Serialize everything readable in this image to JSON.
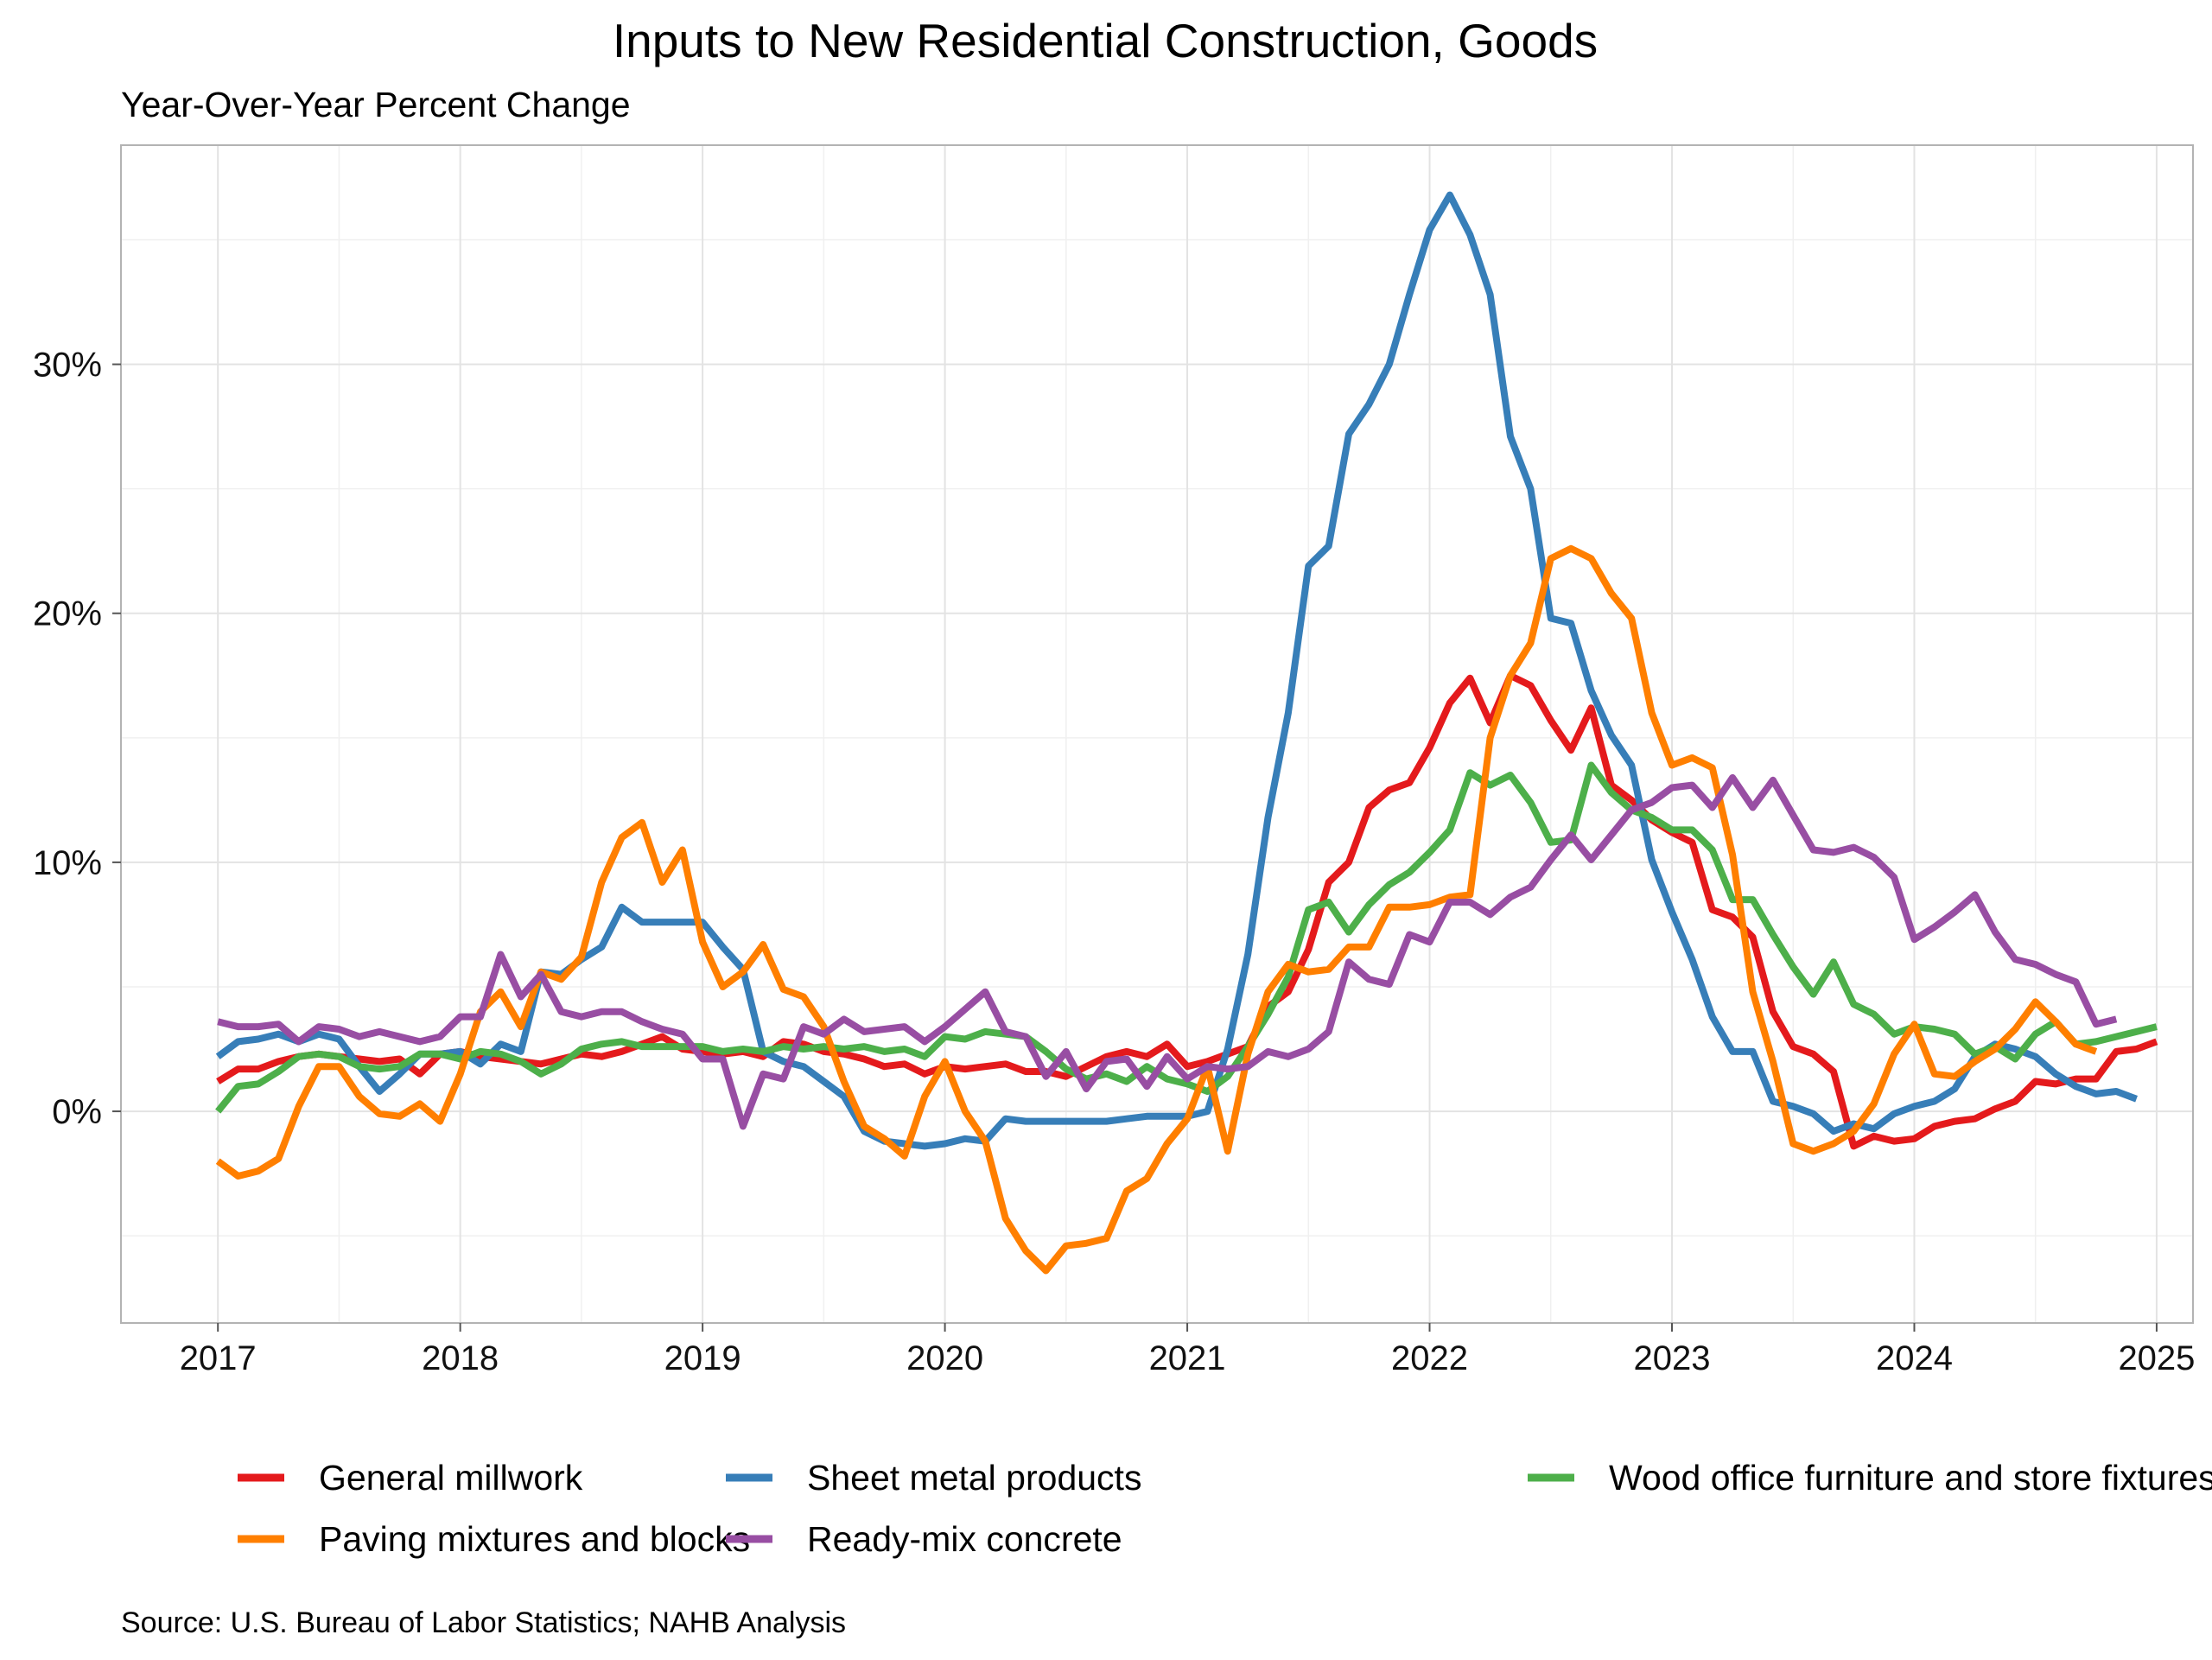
{
  "chart_data": {
    "type": "line",
    "title": "Inputs to New Residential Construction, Goods",
    "subtitle": "Year-Over-Year Percent Change",
    "caption": "Source: U.S. Bureau of Labor Statistics; NAHB Analysis",
    "xlabel": "",
    "ylabel": "",
    "x_start": "2017-01",
    "xlim": [
      2016.6,
      2025.15
    ],
    "ylim": [
      -8.5,
      38.8
    ],
    "x_ticks": [
      {
        "value": 2017,
        "label": "2017"
      },
      {
        "value": 2018,
        "label": "2018"
      },
      {
        "value": 2019,
        "label": "2019"
      },
      {
        "value": 2020,
        "label": "2020"
      },
      {
        "value": 2021,
        "label": "2021"
      },
      {
        "value": 2022,
        "label": "2022"
      },
      {
        "value": 2023,
        "label": "2023"
      },
      {
        "value": 2024,
        "label": "2024"
      },
      {
        "value": 2025,
        "label": "2025"
      }
    ],
    "y_ticks": [
      {
        "value": 0,
        "label": "0%"
      },
      {
        "value": 10,
        "label": "10%"
      },
      {
        "value": 20,
        "label": "20%"
      },
      {
        "value": 30,
        "label": "30%"
      }
    ],
    "y_minor_ticks": [
      -5,
      5,
      15,
      25,
      35
    ],
    "grid": true,
    "legend_position": "bottom",
    "series": [
      {
        "name": "General millwork",
        "color": "#e41a1c",
        "values": [
          1.2,
          1.7,
          1.7,
          2.0,
          2.2,
          2.3,
          2.2,
          2.1,
          2.0,
          2.1,
          1.5,
          2.3,
          2.4,
          2.2,
          2.1,
          2.0,
          1.9,
          2.1,
          2.3,
          2.2,
          2.4,
          2.7,
          3.0,
          2.5,
          2.4,
          2.3,
          2.4,
          2.2,
          2.8,
          2.7,
          2.4,
          2.3,
          2.1,
          1.8,
          1.9,
          1.5,
          1.8,
          1.7,
          1.8,
          1.9,
          1.6,
          1.6,
          1.4,
          1.8,
          2.2,
          2.4,
          2.2,
          2.7,
          1.8,
          2.0,
          2.3,
          2.6,
          4.2,
          4.8,
          6.5,
          9.2,
          10.0,
          12.2,
          12.9,
          13.2,
          14.6,
          16.4,
          17.4,
          15.6,
          17.5,
          17.1,
          15.7,
          14.5,
          16.2,
          13.1,
          12.5,
          11.7,
          11.2,
          10.8,
          8.1,
          7.8,
          7.0,
          4.0,
          2.6,
          2.3,
          1.6,
          -1.4,
          -1.0,
          -1.2,
          -1.1,
          -0.6,
          -0.4,
          -0.3,
          0.1,
          0.4,
          1.2,
          1.1,
          1.3,
          1.3,
          2.4,
          2.5,
          2.8
        ]
      },
      {
        "name": "Sheet metal products",
        "color": "#377eb8",
        "values": [
          2.2,
          2.8,
          2.9,
          3.1,
          2.8,
          3.1,
          2.9,
          1.8,
          0.8,
          1.5,
          2.3,
          2.3,
          2.4,
          1.9,
          2.7,
          2.4,
          5.6,
          5.5,
          6.1,
          6.6,
          8.2,
          7.6,
          7.6,
          7.6,
          7.6,
          6.6,
          5.7,
          2.4,
          2.0,
          1.8,
          1.2,
          0.6,
          -0.8,
          -1.2,
          -1.3,
          -1.4,
          -1.3,
          -1.1,
          -1.2,
          -0.3,
          -0.4,
          -0.4,
          -0.4,
          -0.4,
          -0.4,
          -0.3,
          -0.2,
          -0.2,
          -0.2,
          0.0,
          2.5,
          6.3,
          11.8,
          16.0,
          21.9,
          22.7,
          27.2,
          28.4,
          30.0,
          32.8,
          35.4,
          36.8,
          35.2,
          32.8,
          27.1,
          25.0,
          19.8,
          19.6,
          16.9,
          15.1,
          13.9,
          10.1,
          8.0,
          6.1,
          3.8,
          2.4,
          2.4,
          0.4,
          0.2,
          -0.1,
          -0.8,
          -0.5,
          -0.7,
          -0.1,
          0.2,
          0.4,
          0.9,
          2.2,
          2.7,
          2.5,
          2.2,
          1.5,
          1.0,
          0.7,
          0.8,
          0.5
        ]
      },
      {
        "name": "Wood office furniture and store fixtures",
        "color": "#4daf4a",
        "values": [
          0.0,
          1.0,
          1.1,
          1.6,
          2.2,
          2.3,
          2.2,
          1.8,
          1.7,
          1.8,
          2.3,
          2.3,
          2.1,
          2.4,
          2.3,
          2.0,
          1.5,
          1.9,
          2.5,
          2.7,
          2.8,
          2.6,
          2.6,
          2.6,
          2.6,
          2.4,
          2.5,
          2.4,
          2.6,
          2.5,
          2.6,
          2.5,
          2.6,
          2.4,
          2.5,
          2.2,
          3.0,
          2.9,
          3.2,
          3.1,
          3.0,
          2.4,
          1.7,
          1.3,
          1.5,
          1.2,
          1.8,
          1.3,
          1.1,
          0.8,
          1.4,
          2.6,
          3.9,
          5.4,
          8.1,
          8.4,
          7.2,
          8.3,
          9.1,
          9.6,
          10.4,
          11.3,
          13.6,
          13.1,
          13.5,
          12.4,
          10.8,
          10.9,
          13.9,
          12.8,
          12.1,
          11.8,
          11.3,
          11.3,
          10.5,
          8.5,
          8.5,
          7.1,
          5.8,
          4.7,
          6.0,
          4.3,
          3.9,
          3.1,
          3.4,
          3.3,
          3.1,
          2.3,
          2.6,
          2.1,
          3.1,
          3.6,
          2.7,
          2.8,
          3.0,
          3.2,
          3.4
        ]
      },
      {
        "name": "Paving mixtures and blocks",
        "color": "#ff7f00",
        "values": [
          -2.0,
          -2.6,
          -2.4,
          -1.9,
          0.2,
          1.8,
          1.8,
          0.6,
          -0.1,
          -0.2,
          0.3,
          -0.4,
          1.5,
          4.0,
          4.8,
          3.4,
          5.6,
          5.3,
          6.2,
          9.2,
          11.0,
          11.6,
          9.2,
          10.5,
          6.8,
          5.0,
          5.6,
          6.7,
          4.9,
          4.6,
          3.4,
          1.2,
          -0.6,
          -1.1,
          -1.8,
          0.6,
          2.0,
          0.0,
          -1.2,
          -4.3,
          -5.6,
          -6.4,
          -5.4,
          -5.3,
          -5.1,
          -3.2,
          -2.7,
          -1.3,
          -0.3,
          1.8,
          -1.6,
          2.3,
          4.8,
          5.9,
          5.6,
          5.7,
          6.6,
          6.6,
          8.2,
          8.2,
          8.3,
          8.6,
          8.7,
          15.0,
          17.5,
          18.8,
          22.2,
          22.6,
          22.2,
          20.8,
          19.8,
          16.0,
          13.9,
          14.2,
          13.8,
          10.3,
          4.8,
          2.0,
          -1.3,
          -1.6,
          -1.3,
          -0.8,
          0.3,
          2.3,
          3.5,
          1.5,
          1.4,
          2.0,
          2.5,
          3.3,
          4.4,
          3.6,
          2.7,
          2.4
        ]
      },
      {
        "name": "Ready-mix concrete",
        "color": "#984ea3",
        "values": [
          3.6,
          3.4,
          3.4,
          3.5,
          2.8,
          3.4,
          3.3,
          3.0,
          3.2,
          3.0,
          2.8,
          3.0,
          3.8,
          3.8,
          6.3,
          4.6,
          5.5,
          4.0,
          3.8,
          4.0,
          4.0,
          3.6,
          3.3,
          3.1,
          2.1,
          2.1,
          -0.6,
          1.5,
          1.3,
          3.4,
          3.1,
          3.7,
          3.2,
          3.3,
          3.4,
          2.8,
          3.4,
          4.1,
          4.8,
          3.2,
          3.0,
          1.4,
          2.4,
          0.9,
          2.0,
          2.1,
          1.0,
          2.2,
          1.3,
          1.8,
          1.7,
          1.8,
          2.4,
          2.2,
          2.5,
          3.2,
          6.0,
          5.3,
          5.1,
          7.1,
          6.8,
          8.4,
          8.4,
          7.9,
          8.6,
          9.0,
          10.1,
          11.1,
          10.1,
          11.1,
          12.1,
          12.4,
          13.0,
          13.1,
          12.2,
          13.4,
          12.2,
          13.3,
          11.9,
          10.5,
          10.4,
          10.6,
          10.2,
          9.4,
          6.9,
          7.4,
          8.0,
          8.7,
          7.2,
          6.1,
          5.9,
          5.5,
          5.2,
          3.5,
          3.7
        ]
      }
    ]
  }
}
